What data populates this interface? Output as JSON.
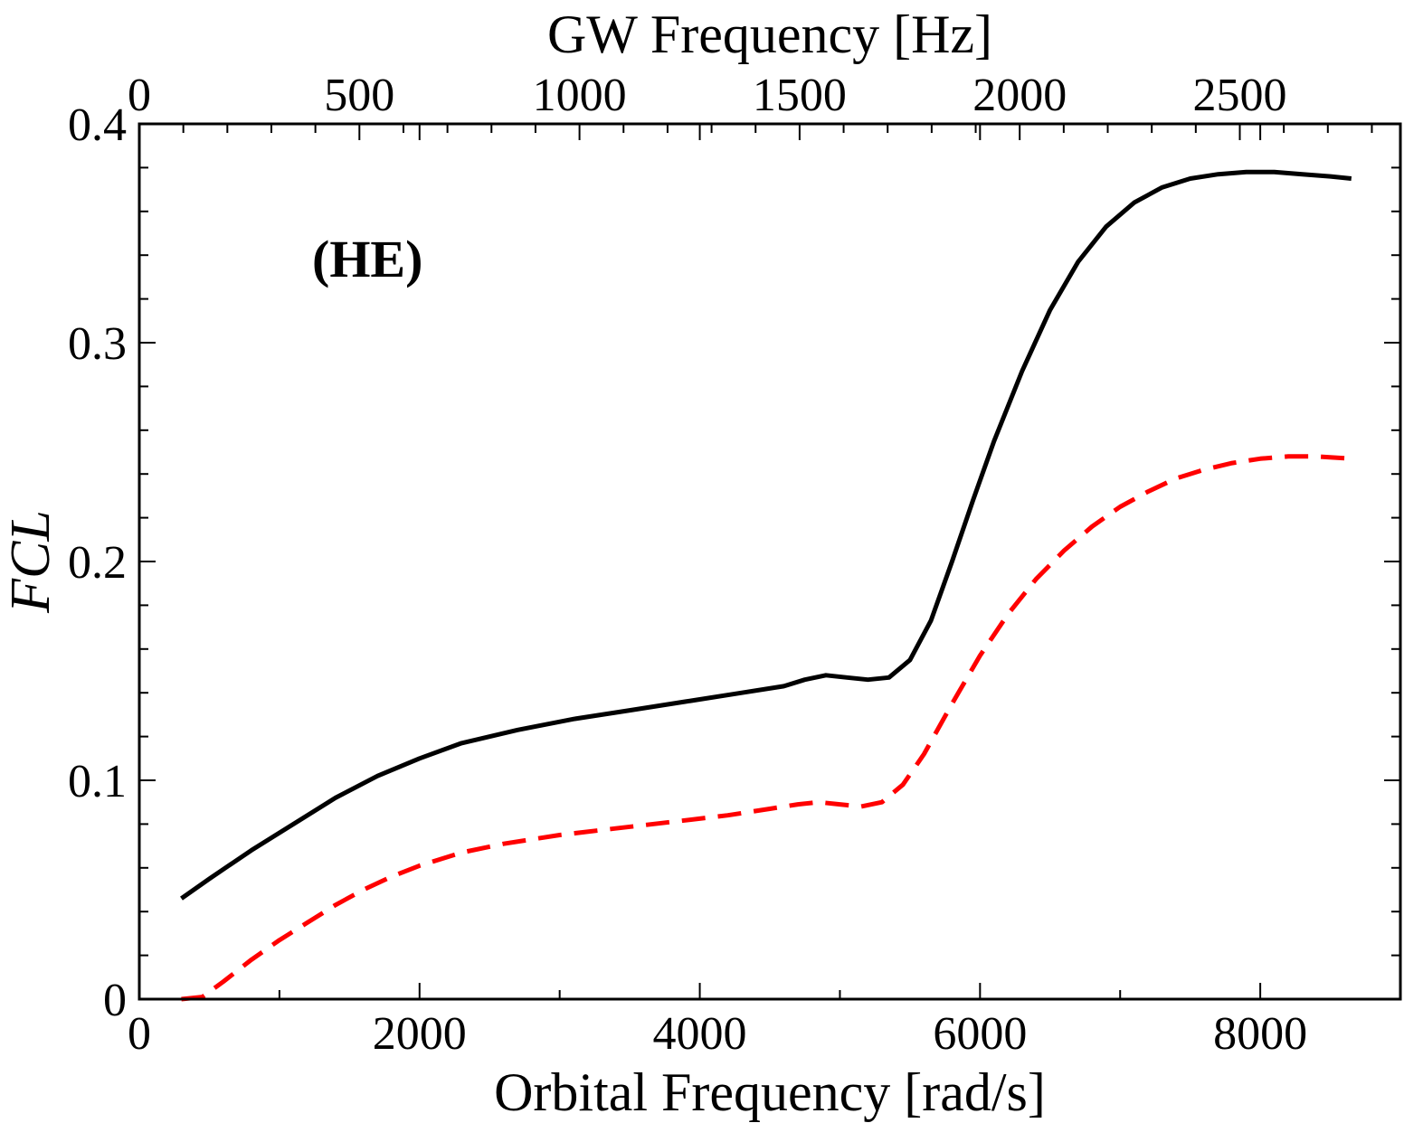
{
  "chart_data": {
    "type": "line",
    "title": "",
    "xlabel": "Orbital Frequency [rad/s]",
    "ylabel": "FCL",
    "top_xlabel": "GW Frequency [Hz]",
    "annotation": "(HE)",
    "xlim": [
      0,
      9000
    ],
    "ylim": [
      0,
      0.4
    ],
    "top_xlim": [
      0,
      2864.8
    ],
    "x_ticks": [
      0,
      2000,
      4000,
      6000,
      8000
    ],
    "x_tick_labels": [
      "0",
      "2000",
      "4000",
      "6000",
      "8000"
    ],
    "y_ticks": [
      0,
      0.1,
      0.2,
      0.3,
      0.4
    ],
    "y_tick_labels": [
      "0",
      "0.1",
      "0.2",
      "0.3",
      "0.4"
    ],
    "top_ticks": [
      0,
      500,
      1000,
      1500,
      2000,
      2500
    ],
    "top_tick_labels": [
      "0",
      "500",
      "1000",
      "1500",
      "2000",
      "2500"
    ],
    "grid": false,
    "series": [
      {
        "name": "solid",
        "color": "#000000",
        "style": "solid",
        "x": [
          300,
          500,
          800,
          1100,
          1400,
          1700,
          2000,
          2300,
          2700,
          3100,
          3500,
          3900,
          4300,
          4600,
          4750,
          4900,
          5050,
          5200,
          5350,
          5500,
          5650,
          5800,
          5950,
          6100,
          6300,
          6500,
          6700,
          6900,
          7100,
          7300,
          7500,
          7700,
          7900,
          8100,
          8300,
          8500,
          8650
        ],
        "y": [
          0.046,
          0.055,
          0.068,
          0.08,
          0.092,
          0.102,
          0.11,
          0.117,
          0.123,
          0.128,
          0.132,
          0.136,
          0.14,
          0.143,
          0.146,
          0.148,
          0.147,
          0.146,
          0.147,
          0.155,
          0.173,
          0.2,
          0.228,
          0.255,
          0.287,
          0.315,
          0.337,
          0.353,
          0.364,
          0.371,
          0.375,
          0.377,
          0.378,
          0.378,
          0.377,
          0.376,
          0.375
        ]
      },
      {
        "name": "dashed",
        "color": "#ff0000",
        "style": "dashed",
        "x": [
          300,
          450,
          600,
          800,
          1000,
          1200,
          1400,
          1600,
          1800,
          2000,
          2300,
          2600,
          3000,
          3400,
          3800,
          4200,
          4500,
          4700,
          4850,
          5000,
          5150,
          5300,
          5450,
          5600,
          5800,
          6000,
          6200,
          6400,
          6600,
          6800,
          7000,
          7200,
          7400,
          7600,
          7800,
          8000,
          8200,
          8400,
          8650
        ],
        "y": [
          0.0,
          0.001,
          0.008,
          0.018,
          0.027,
          0.035,
          0.043,
          0.05,
          0.056,
          0.061,
          0.067,
          0.071,
          0.075,
          0.078,
          0.081,
          0.084,
          0.087,
          0.089,
          0.09,
          0.089,
          0.088,
          0.09,
          0.098,
          0.112,
          0.135,
          0.157,
          0.176,
          0.192,
          0.205,
          0.216,
          0.225,
          0.232,
          0.238,
          0.242,
          0.245,
          0.247,
          0.248,
          0.248,
          0.247
        ]
      }
    ]
  }
}
